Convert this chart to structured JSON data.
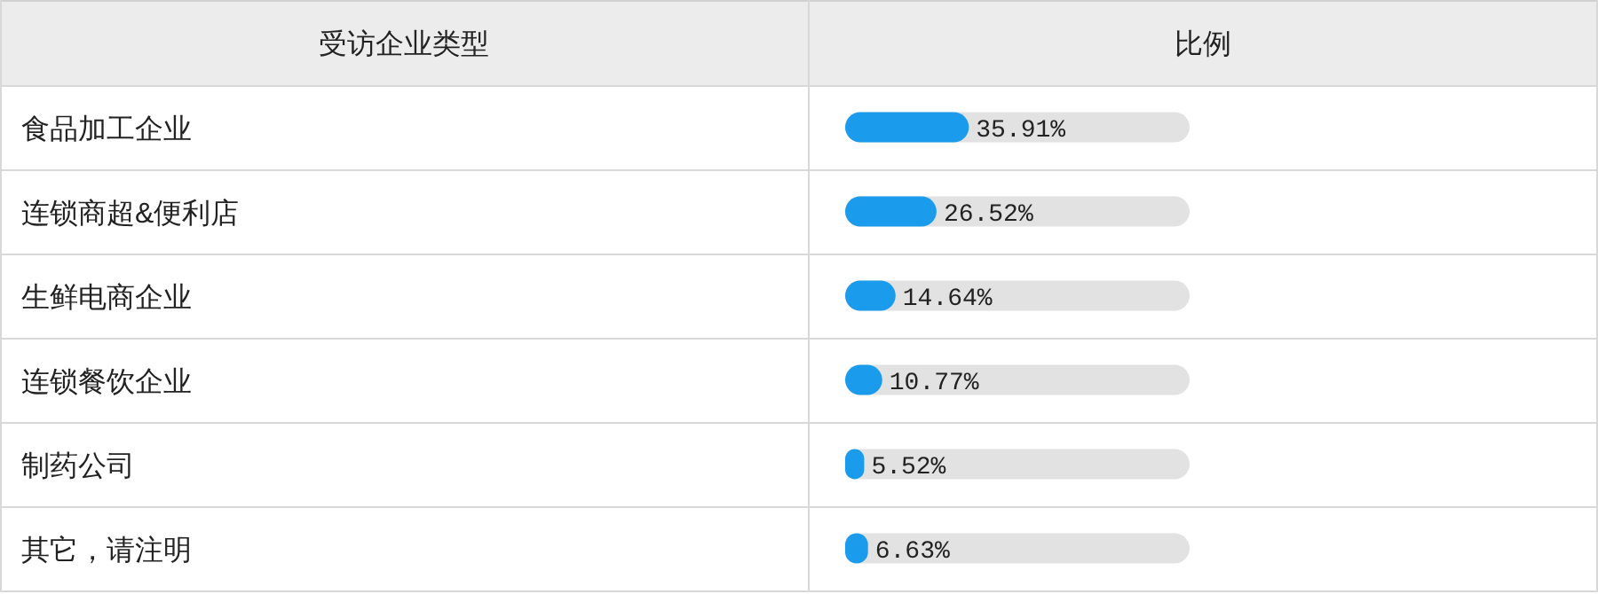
{
  "chart_data": {
    "type": "bar",
    "orientation": "horizontal",
    "ylabel": "受访企业类型",
    "xlabel": "比例",
    "categories": [
      "食品加工企业",
      "连锁商超&便利店",
      "生鲜电商企业",
      "连锁餐饮企业",
      "制药公司",
      "其它，请注明"
    ],
    "values": [
      35.91,
      26.52,
      14.64,
      10.77,
      5.52,
      6.63
    ],
    "value_labels": [
      "35.91%",
      "26.52%",
      "14.64%",
      "10.77%",
      "5.52%",
      "6.63%"
    ],
    "color": "#1a9bec",
    "xlim": [
      0,
      100
    ]
  }
}
